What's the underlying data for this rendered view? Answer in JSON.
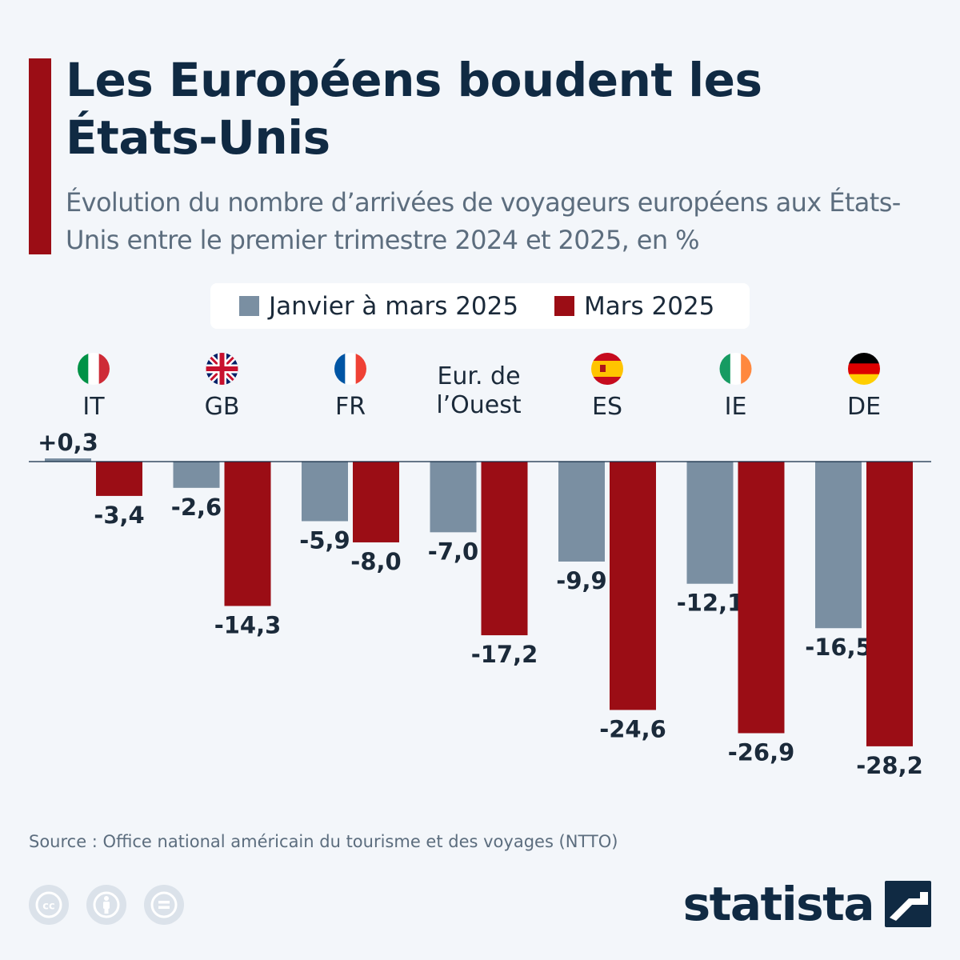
{
  "title": "Les Européens boudent les États-Unis",
  "subtitle": "Évolution du nombre d’arrivées de voyageurs européens aux États-Unis entre le premier trimestre 2024 et 2025, en %",
  "legend": {
    "items": [
      {
        "label": "Janvier à mars 2025",
        "color": "#7a8fa2"
      },
      {
        "label": "Mars 2025",
        "color": "#9b0d15"
      }
    ]
  },
  "chart_data": {
    "type": "bar",
    "categories": [
      "IT",
      "GB",
      "FR",
      "Eur. de l’Ouest",
      "ES",
      "IE",
      "DE"
    ],
    "category_flags": [
      "italy-flag-icon",
      "uk-flag-icon",
      "france-flag-icon",
      "",
      "spain-flag-icon",
      "ireland-flag-icon",
      "germany-flag-icon"
    ],
    "series": [
      {
        "name": "Janvier à mars 2025",
        "color": "#7a8fa2",
        "values": [
          0.3,
          -2.6,
          -5.9,
          -7.0,
          -9.9,
          -12.1,
          -16.5
        ],
        "labels": [
          "+0,3",
          "-2,6",
          "-5,9",
          "-7,0",
          "-9,9",
          "-12,1",
          "-16,5"
        ]
      },
      {
        "name": "Mars 2025",
        "color": "#9b0d15",
        "values": [
          -3.4,
          -14.3,
          -8.0,
          -17.2,
          -24.6,
          -26.9,
          -28.2
        ],
        "labels": [
          "-3,4",
          "-14,3",
          "-8,0",
          "-17,2",
          "-24,6",
          "-26,9",
          "-28,2"
        ]
      }
    ],
    "ylim": [
      -30,
      1
    ],
    "legend_position": "top",
    "grid": false,
    "baseline": 0
  },
  "source": "Source : Office national américain du tourisme et des voyages (NTTO)",
  "license_icons": [
    "cc-icon",
    "attribution-icon",
    "no-derivatives-icon"
  ],
  "brand": "statista"
}
